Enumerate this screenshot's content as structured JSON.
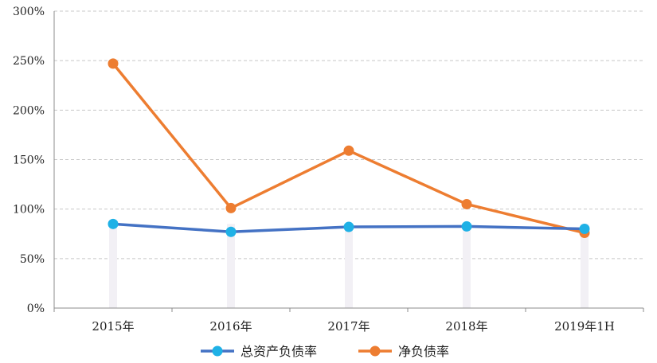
{
  "chart_data": {
    "type": "line",
    "categories": [
      "2015年",
      "2016年",
      "2017年",
      "2018年",
      "2019年1H"
    ],
    "series": [
      {
        "name": "总资产负债率",
        "values": [
          85,
          77,
          82,
          82.5,
          80
        ],
        "color": "#4472C4",
        "marker_color": "#1FB1E6"
      },
      {
        "name": "净负债率",
        "values": [
          247,
          101,
          159,
          105,
          76
        ],
        "color": "#ED7D31",
        "marker_color": "#ED7D31"
      }
    ],
    "ylim": [
      0,
      300
    ],
    "yticks": [
      "0%",
      "50%",
      "100%",
      "150%",
      "200%",
      "250%",
      "300%"
    ],
    "grid": true,
    "legend": "bottom-center"
  }
}
